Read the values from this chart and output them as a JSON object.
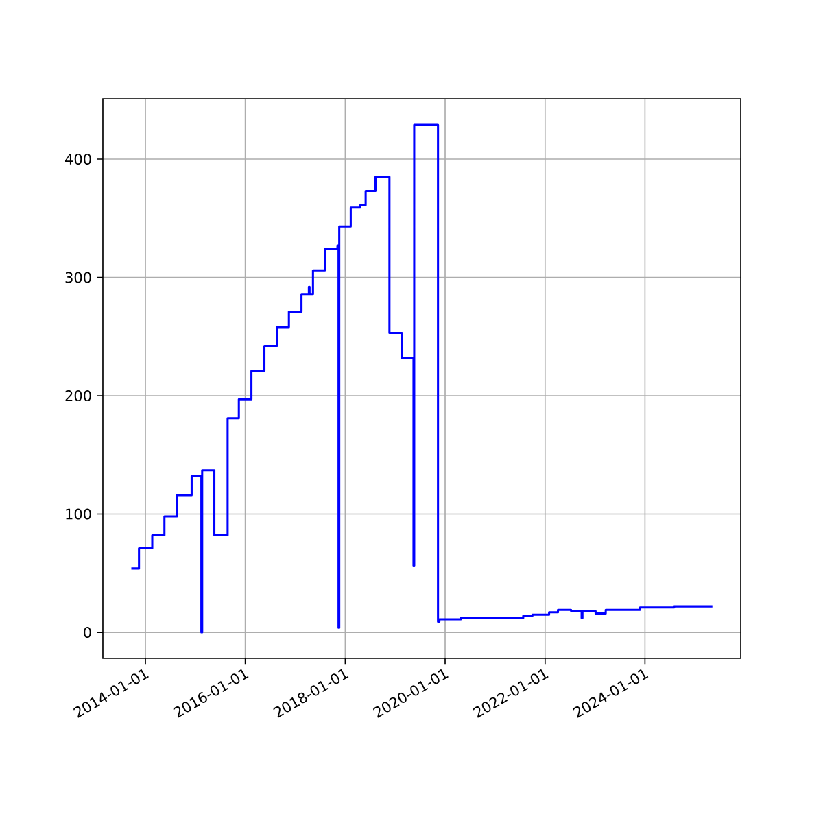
{
  "chart_data": {
    "type": "step",
    "color": "#0000ff",
    "grid": true,
    "x": [
      "2013-09-20",
      "2013-11-15",
      "2014-02-20",
      "2014-05-20",
      "2014-08-20",
      "2014-12-05",
      "2015-02-14",
      "2015-02-20",
      "2015-05-20",
      "2015-08-25",
      "2015-11-15",
      "2016-02-15",
      "2016-05-20",
      "2016-08-20",
      "2016-11-15",
      "2017-02-15",
      "2017-04-10",
      "2017-04-15",
      "2017-05-10",
      "2017-08-05",
      "2017-11-05",
      "2017-11-13",
      "2017-11-18",
      "2018-02-10",
      "2018-04-20",
      "2018-05-30",
      "2018-08-10",
      "2018-11-20",
      "2019-02-20",
      "2019-05-15",
      "2019-05-20",
      "2019-11-10",
      "2019-11-20",
      "2020-04-25",
      "2021-07-25",
      "2021-09-30",
      "2022-01-30",
      "2022-04-05",
      "2022-07-10",
      "2022-09-25",
      "2022-10-01",
      "2023-01-05",
      "2023-03-20",
      "2023-11-25",
      "2024-08-01",
      "2025-05-08"
    ],
    "values": [
      54,
      71,
      82,
      98,
      116,
      132,
      0,
      137,
      82,
      181,
      197,
      221,
      242,
      258,
      271,
      286,
      292,
      286,
      306,
      324,
      327,
      4,
      343,
      359,
      361,
      373,
      385,
      253,
      232,
      56,
      429,
      9,
      11,
      12,
      14,
      15,
      17,
      19,
      18,
      12,
      18,
      16,
      19,
      21,
      22,
      22
    ],
    "xlim": [
      "2013-02-24",
      "2025-12-01"
    ],
    "ylim": [
      -22,
      451
    ],
    "xticks": [
      "2014-01-01",
      "2016-01-01",
      "2018-01-01",
      "2020-01-01",
      "2022-01-01",
      "2024-01-01"
    ],
    "yticks": [
      0,
      100,
      200,
      300,
      400
    ]
  }
}
